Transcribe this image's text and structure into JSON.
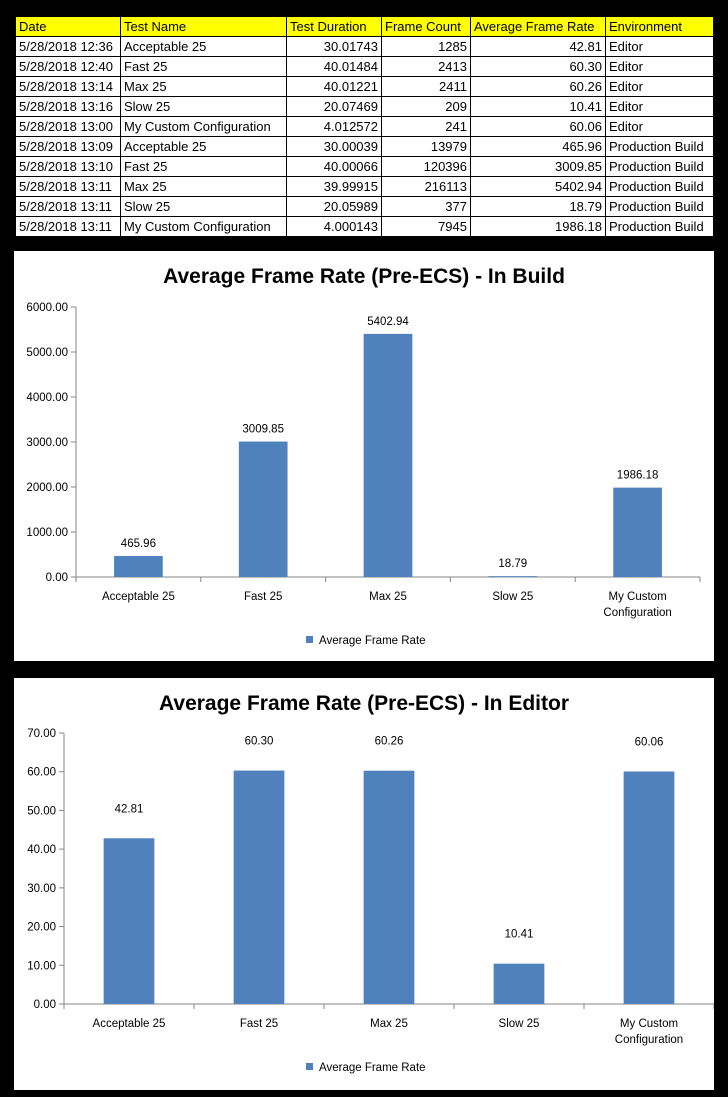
{
  "table": {
    "headers": [
      "Date",
      "Test Name",
      "Test Duration",
      "Frame Count",
      "Average Frame Rate",
      "Environment"
    ],
    "rows": [
      [
        "5/28/2018 12:36",
        "Acceptable 25",
        "30.01743",
        "1285",
        "42.81",
        "Editor"
      ],
      [
        "5/28/2018 12:40",
        "Fast 25",
        "40.01484",
        "2413",
        "60.30",
        "Editor"
      ],
      [
        "5/28/2018 13:14",
        "Max 25",
        "40.01221",
        "2411",
        "60.26",
        "Editor"
      ],
      [
        "5/28/2018 13:16",
        "Slow 25",
        "20.07469",
        "209",
        "10.41",
        "Editor"
      ],
      [
        "5/28/2018 13:00",
        "My Custom Configuration",
        "4.012572",
        "241",
        "60.06",
        "Editor"
      ],
      [
        "5/28/2018 13:09",
        "Acceptable 25",
        "30.00039",
        "13979",
        "465.96",
        "Production Build"
      ],
      [
        "5/28/2018 13:10",
        "Fast 25",
        "40.00066",
        "120396",
        "3009.85",
        "Production Build"
      ],
      [
        "5/28/2018 13:11",
        "Max 25",
        "39.99915",
        "216113",
        "5402.94",
        "Production Build"
      ],
      [
        "5/28/2018 13:11",
        "Slow 25",
        "20.05989",
        "377",
        "18.79",
        "Production Build"
      ],
      [
        "5/28/2018 13:11",
        "My Custom Configuration",
        "4.000143",
        "7945",
        "1986.18",
        "Production Build"
      ]
    ]
  },
  "colors": {
    "header_fill": "#ffff00",
    "bar": "#4f81bd",
    "background": "#000000"
  },
  "chart_data": [
    {
      "type": "bar",
      "title": "Average Frame Rate (Pre-ECS) - In Build",
      "categories": [
        "Acceptable 25",
        "Fast 25",
        "Max 25",
        "Slow 25",
        "My Custom Configuration"
      ],
      "category_lines": [
        [
          "Acceptable 25"
        ],
        [
          "Fast 25"
        ],
        [
          "Max 25"
        ],
        [
          "Slow 25"
        ],
        [
          "My Custom",
          "Configuration"
        ]
      ],
      "series": [
        {
          "name": "Average Frame Rate",
          "values": [
            465.96,
            3009.85,
            5402.94,
            18.79,
            1986.18
          ]
        }
      ],
      "data_labels": [
        "465.96",
        "3009.85",
        "5402.94",
        "18.79",
        "1986.18"
      ],
      "ylim": [
        0,
        6000
      ],
      "yticks": [
        0,
        1000,
        2000,
        3000,
        4000,
        5000,
        6000
      ],
      "ytick_labels": [
        "0.00",
        "1000.00",
        "2000.00",
        "3000.00",
        "4000.00",
        "5000.00",
        "6000.00"
      ],
      "xlabel": "",
      "ylabel": "",
      "grid": false,
      "legend": "bottom"
    },
    {
      "type": "bar",
      "title": "Average Frame Rate (Pre-ECS) - In Editor",
      "categories": [
        "Acceptable 25",
        "Fast 25",
        "Max 25",
        "Slow 25",
        "My Custom Configuration"
      ],
      "category_lines": [
        [
          "Acceptable 25"
        ],
        [
          "Fast 25"
        ],
        [
          "Max 25"
        ],
        [
          "Slow 25"
        ],
        [
          "My Custom",
          "Configuration"
        ]
      ],
      "series": [
        {
          "name": "Average Frame Rate",
          "values": [
            42.81,
            60.3,
            60.26,
            10.41,
            60.06
          ]
        }
      ],
      "data_labels": [
        "42.81",
        "60.30",
        "60.26",
        "10.41",
        "60.06"
      ],
      "ylim": [
        0,
        70
      ],
      "yticks": [
        0,
        10,
        20,
        30,
        40,
        50,
        60,
        70
      ],
      "ytick_labels": [
        "0.00",
        "10.00",
        "20.00",
        "30.00",
        "40.00",
        "50.00",
        "60.00",
        "70.00"
      ],
      "xlabel": "",
      "ylabel": "",
      "grid": false,
      "legend": "bottom"
    }
  ]
}
